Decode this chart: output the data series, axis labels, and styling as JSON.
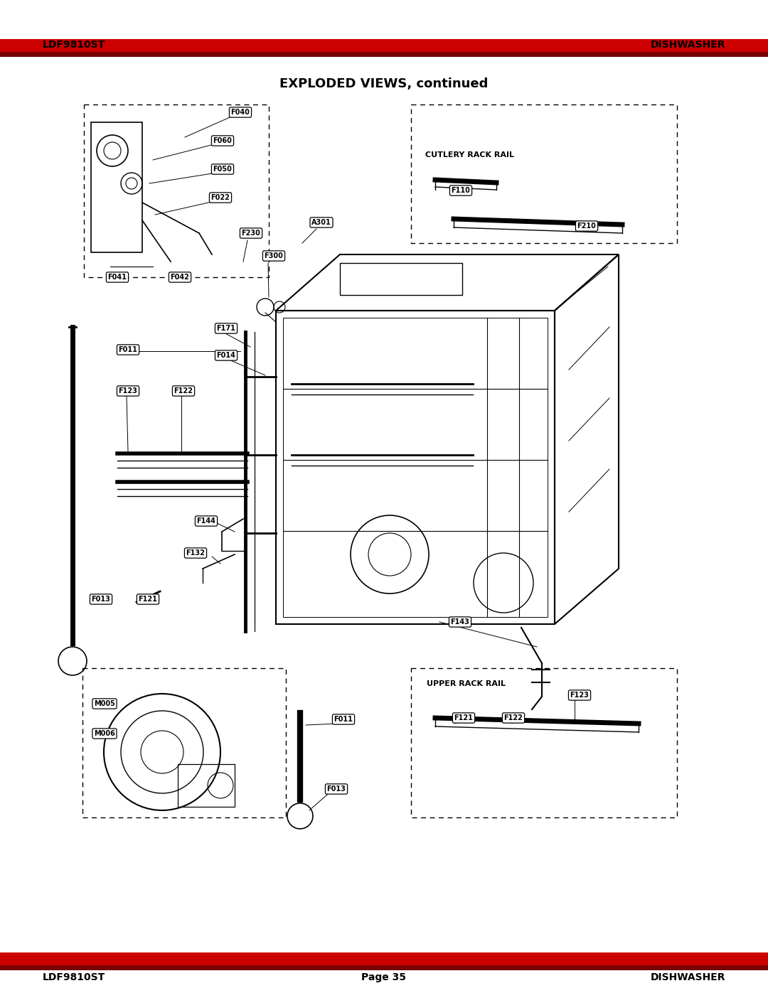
{
  "page_title": "EXPLODED VIEWS, continued",
  "header_left": "LDF9810ST",
  "header_right": "DISHWASHER",
  "footer_left": "LDF9810ST",
  "footer_center": "Page 35",
  "footer_right": "DISHWASHER",
  "background_color": "#ffffff",
  "title_fontsize": 13,
  "header_fontsize": 10,
  "footer_fontsize": 10,
  "label_fontsize": 7,
  "figsize": [
    10.8,
    13.97
  ],
  "dpi": 100,
  "cutlery_label": "CUTLERY RACK RAIL",
  "upper_rack_label": "UPPER RACK RAIL",
  "fig_w": 1080,
  "fig_h": 1397
}
